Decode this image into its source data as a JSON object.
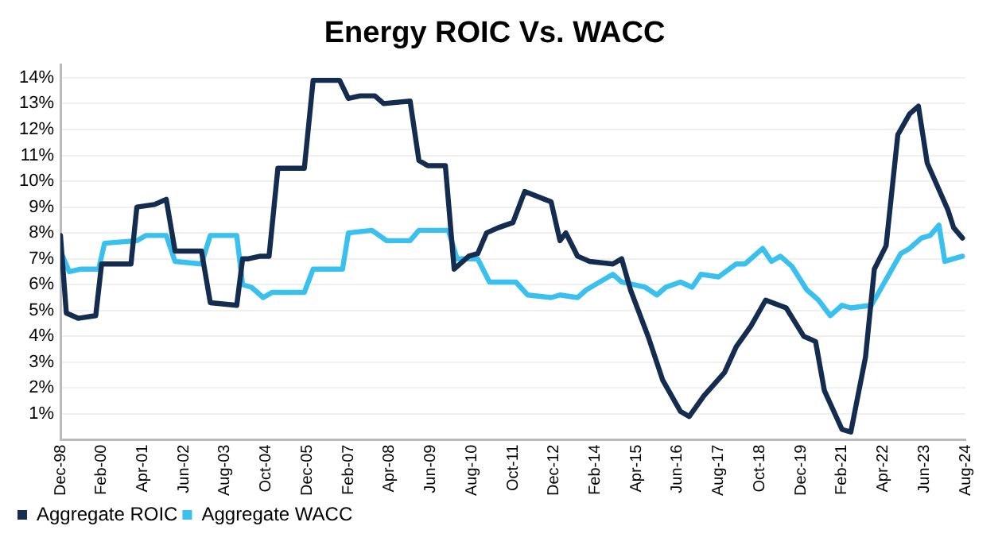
{
  "chart_data": {
    "type": "line",
    "title": "Energy ROIC Vs. WACC",
    "xlim": [
      "1998-12",
      "2024-08"
    ],
    "xticks": [
      {
        "value": "1998-12",
        "label": "Dec-98"
      },
      {
        "value": "2000-02",
        "label": "Feb-00"
      },
      {
        "value": "2001-04",
        "label": "Apr-01"
      },
      {
        "value": "2002-06",
        "label": "Jun-02"
      },
      {
        "value": "2003-08",
        "label": "Aug-03"
      },
      {
        "value": "2004-10",
        "label": "Oct-04"
      },
      {
        "value": "2005-12",
        "label": "Dec-05"
      },
      {
        "value": "2007-02",
        "label": "Feb-07"
      },
      {
        "value": "2008-04",
        "label": "Apr-08"
      },
      {
        "value": "2009-06",
        "label": "Jun-09"
      },
      {
        "value": "2010-08",
        "label": "Aug-10"
      },
      {
        "value": "2011-10",
        "label": "Oct-11"
      },
      {
        "value": "2012-12",
        "label": "Dec-12"
      },
      {
        "value": "2014-02",
        "label": "Feb-14"
      },
      {
        "value": "2015-04",
        "label": "Apr-15"
      },
      {
        "value": "2016-06",
        "label": "Jun-16"
      },
      {
        "value": "2017-08",
        "label": "Aug-17"
      },
      {
        "value": "2018-10",
        "label": "Oct-18"
      },
      {
        "value": "2019-12",
        "label": "Dec-19"
      },
      {
        "value": "2021-02",
        "label": "Feb-21"
      },
      {
        "value": "2022-04",
        "label": "Apr-22"
      },
      {
        "value": "2023-06",
        "label": "Jun-23"
      },
      {
        "value": "2024-08",
        "label": "Aug-24"
      }
    ],
    "ylim": [
      0,
      14.5
    ],
    "yticks": [
      {
        "value": 1,
        "label": "1%"
      },
      {
        "value": 2,
        "label": "2%"
      },
      {
        "value": 3,
        "label": "3%"
      },
      {
        "value": 4,
        "label": "4%"
      },
      {
        "value": 5,
        "label": "5%"
      },
      {
        "value": 6,
        "label": "6%"
      },
      {
        "value": 7,
        "label": "7%"
      },
      {
        "value": 8,
        "label": "8%"
      },
      {
        "value": 9,
        "label": "9%"
      },
      {
        "value": 10,
        "label": "10%"
      },
      {
        "value": 11,
        "label": "11%"
      },
      {
        "value": 12,
        "label": "12%"
      },
      {
        "value": 13,
        "label": "13%"
      },
      {
        "value": 14,
        "label": "14%"
      }
    ],
    "grid": "y",
    "legend": "bottom left",
    "series": [
      {
        "name": "Aggregate ROIC",
        "color": "#142c50",
        "x": [
          "1998-12",
          "1999-02",
          "1999-06",
          "1999-12",
          "2000-02",
          "2000-12",
          "2001-02",
          "2001-08",
          "2001-12",
          "2002-03",
          "2002-12",
          "2003-03",
          "2003-12",
          "2004-02",
          "2004-04",
          "2004-08",
          "2004-11",
          "2005-02",
          "2005-11",
          "2006-02",
          "2006-11",
          "2007-02",
          "2007-06",
          "2007-11",
          "2008-02",
          "2008-11",
          "2009-02",
          "2009-05",
          "2009-11",
          "2010-02",
          "2010-07",
          "2010-10",
          "2011-01",
          "2011-05",
          "2011-10",
          "2012-02",
          "2012-11",
          "2013-02",
          "2013-04",
          "2013-08",
          "2013-12",
          "2014-08",
          "2014-11",
          "2015-02",
          "2015-08",
          "2016-01",
          "2016-07",
          "2016-10",
          "2017-03",
          "2017-10",
          "2018-02",
          "2018-07",
          "2018-12",
          "2019-07",
          "2020-01",
          "2020-05",
          "2020-08",
          "2021-02",
          "2021-05",
          "2021-10",
          "2022-01",
          "2022-05",
          "2022-09",
          "2023-01",
          "2023-04",
          "2023-07",
          "2024-02",
          "2024-04",
          "2024-07"
        ],
        "values": [
          7.9,
          4.9,
          4.7,
          4.8,
          6.8,
          6.8,
          9.0,
          9.1,
          9.3,
          7.3,
          7.3,
          5.3,
          5.2,
          7.0,
          7.0,
          7.1,
          7.1,
          10.5,
          10.5,
          13.9,
          13.9,
          13.2,
          13.3,
          13.3,
          13.0,
          13.1,
          10.8,
          10.6,
          10.6,
          6.6,
          7.1,
          7.2,
          8.0,
          8.2,
          8.4,
          9.6,
          9.2,
          7.7,
          8.0,
          7.1,
          6.9,
          6.8,
          7.0,
          5.8,
          4.0,
          2.3,
          1.1,
          0.9,
          1.7,
          2.6,
          3.6,
          4.4,
          5.4,
          5.1,
          4.0,
          3.8,
          1.9,
          0.4,
          0.3,
          3.2,
          6.6,
          7.5,
          11.8,
          12.6,
          12.9,
          10.7,
          8.9,
          8.2,
          7.8
        ]
      },
      {
        "name": "Aggregate WACC",
        "color": "#3ac0ef",
        "x": [
          "1998-12",
          "1999-03",
          "1999-07",
          "2000-01",
          "2000-03",
          "2001-02",
          "2001-05",
          "2001-12",
          "2002-03",
          "2002-12",
          "2003-03",
          "2003-12",
          "2004-02",
          "2004-05",
          "2004-09",
          "2004-12",
          "2005-11",
          "2006-02",
          "2006-12",
          "2007-02",
          "2007-10",
          "2008-03",
          "2008-11",
          "2009-02",
          "2009-12",
          "2010-03",
          "2010-10",
          "2011-02",
          "2011-11",
          "2012-03",
          "2012-11",
          "2013-02",
          "2013-08",
          "2013-11",
          "2014-08",
          "2014-11",
          "2015-07",
          "2015-11",
          "2016-02",
          "2016-07",
          "2016-11",
          "2017-02",
          "2017-08",
          "2018-02",
          "2018-05",
          "2018-11",
          "2019-02",
          "2019-05",
          "2019-09",
          "2020-02",
          "2020-06",
          "2020-10",
          "2021-02",
          "2021-05",
          "2021-12",
          "2022-04",
          "2022-10",
          "2023-01",
          "2023-05",
          "2023-08",
          "2023-11",
          "2024-01",
          "2024-07"
        ],
        "values": [
          7.3,
          6.5,
          6.6,
          6.6,
          7.6,
          7.7,
          7.9,
          7.9,
          6.9,
          6.8,
          7.9,
          7.9,
          6.0,
          5.9,
          5.5,
          5.7,
          5.7,
          6.6,
          6.6,
          8.0,
          8.1,
          7.7,
          7.7,
          8.1,
          8.1,
          7.0,
          7.0,
          6.1,
          6.1,
          5.6,
          5.5,
          5.6,
          5.5,
          5.8,
          6.4,
          6.1,
          5.9,
          5.6,
          5.9,
          6.1,
          5.9,
          6.4,
          6.3,
          6.8,
          6.8,
          7.4,
          6.9,
          7.1,
          6.7,
          5.8,
          5.4,
          4.8,
          5.2,
          5.1,
          5.2,
          6.0,
          7.2,
          7.4,
          7.8,
          7.9,
          8.3,
          6.9,
          7.1
        ]
      }
    ]
  }
}
